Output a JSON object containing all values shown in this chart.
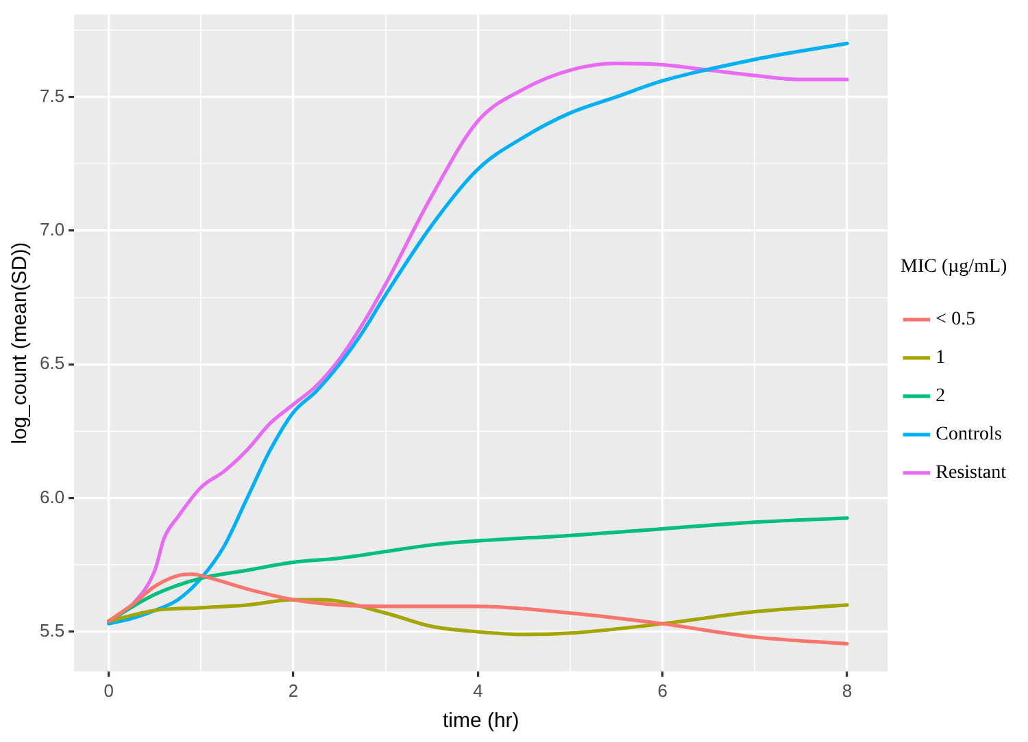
{
  "chart_data": {
    "type": "line",
    "xlabel": "time (hr)",
    "ylabel": "log_count (mean(SD))",
    "legend_title": "MIC (µg/mL)",
    "xlim": [
      -0.375,
      8.44
    ],
    "ylim": [
      5.352,
      7.807
    ],
    "xticks": [
      0,
      {
        "value": 1,
        "label": null
      },
      2,
      {
        "value": 3,
        "label": null
      },
      4,
      {
        "value": 5,
        "label": null
      },
      6,
      {
        "value": 7,
        "label": null
      },
      8
    ],
    "yticks": [
      {
        "value": 5.5,
        "label": "5.5"
      },
      {
        "value": 5.75,
        "label": null
      },
      {
        "value": 6,
        "label": "6.0"
      },
      {
        "value": 6.25,
        "label": null
      },
      {
        "value": 6.5,
        "label": "6.5"
      },
      {
        "value": 6.75,
        "label": null
      },
      {
        "value": 7,
        "label": "7.0"
      },
      {
        "value": 7.25,
        "label": null
      },
      {
        "value": 7.5,
        "label": "7.5"
      },
      {
        "value": 7.75,
        "label": null
      }
    ],
    "grid": true,
    "legend": "right",
    "marker": "none",
    "line_style": "solid",
    "series": [
      {
        "name": "< 0.5",
        "color": "#f8766d",
        "x": [
          0,
          0.25,
          0.5,
          0.75,
          0.9,
          1,
          1.5,
          2,
          2.5,
          3,
          4,
          5,
          6,
          7,
          8
        ],
        "values": [
          5.54,
          5.6,
          5.67,
          5.71,
          5.715,
          5.71,
          5.66,
          5.62,
          5.6,
          5.595,
          5.595,
          5.57,
          5.53,
          5.48,
          5.455
        ]
      },
      {
        "name": "1",
        "color": "#a3a500",
        "x": [
          0,
          0.5,
          1,
          1.5,
          2,
          2.3,
          3,
          3.5,
          4,
          4.5,
          5,
          6,
          7,
          8
        ],
        "values": [
          5.54,
          5.58,
          5.59,
          5.6,
          5.62,
          5.62,
          5.57,
          5.52,
          5.5,
          5.49,
          5.495,
          5.53,
          5.575,
          5.6
        ]
      },
      {
        "name": "2",
        "color": "#00bf7d",
        "x": [
          0,
          0.5,
          1,
          1.5,
          2,
          2.5,
          3,
          3.5,
          4,
          5,
          6,
          7,
          8
        ],
        "values": [
          5.54,
          5.64,
          5.7,
          5.73,
          5.76,
          5.775,
          5.8,
          5.825,
          5.84,
          5.86,
          5.885,
          5.91,
          5.925
        ]
      },
      {
        "name": "Controls",
        "color": "#00b0f6",
        "x": [
          0,
          0.25,
          0.5,
          0.75,
          1,
          1.25,
          1.5,
          1.75,
          2,
          2.25,
          2.5,
          2.75,
          3,
          3.5,
          4,
          4.5,
          5,
          5.5,
          6,
          7,
          8
        ],
        "values": [
          5.53,
          5.55,
          5.58,
          5.62,
          5.7,
          5.82,
          6.0,
          6.18,
          6.32,
          6.4,
          6.5,
          6.62,
          6.76,
          7.02,
          7.23,
          7.35,
          7.44,
          7.5,
          7.56,
          7.64,
          7.7
        ]
      },
      {
        "name": "Resistant",
        "color": "#e76bf3",
        "x": [
          0,
          0.25,
          0.5,
          0.6,
          0.75,
          1,
          1.25,
          1.5,
          1.75,
          2,
          2.25,
          2.5,
          2.75,
          3,
          3.5,
          4,
          4.5,
          5,
          5.5,
          6,
          6.5,
          7,
          7.5,
          8
        ],
        "values": [
          5.54,
          5.6,
          5.73,
          5.85,
          5.93,
          6.04,
          6.1,
          6.18,
          6.28,
          6.35,
          6.42,
          6.52,
          6.65,
          6.8,
          7.13,
          7.41,
          7.53,
          7.6,
          7.625,
          7.62,
          7.6,
          7.58,
          7.565,
          7.565
        ]
      }
    ]
  }
}
